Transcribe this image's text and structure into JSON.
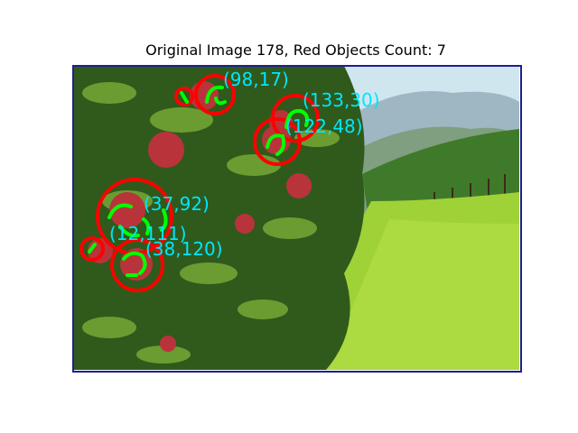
{
  "title": "Original Image 178, Red Objects Count: 7",
  "colors": {
    "background": "#ffffff",
    "frame": "#1f1f8f",
    "circle": "#ff0000",
    "contour": "#00ff00",
    "label": "#00e5ff",
    "apple": "#b8343a",
    "foliage_dark": "#2f5a1c",
    "foliage_light": "#7fb33a",
    "grass": "#9fd236",
    "sky": "#cfe6ee"
  },
  "image": {
    "description": "apple-tree",
    "detections": [
      {
        "label": "(98,17)"
      },
      {
        "label": "(133,30)"
      },
      {
        "label": "(122,48)"
      },
      {
        "label": "(37,92)"
      },
      {
        "label": "(12,111)"
      },
      {
        "label": "(38,120)"
      },
      {
        "label": ""
      }
    ]
  }
}
